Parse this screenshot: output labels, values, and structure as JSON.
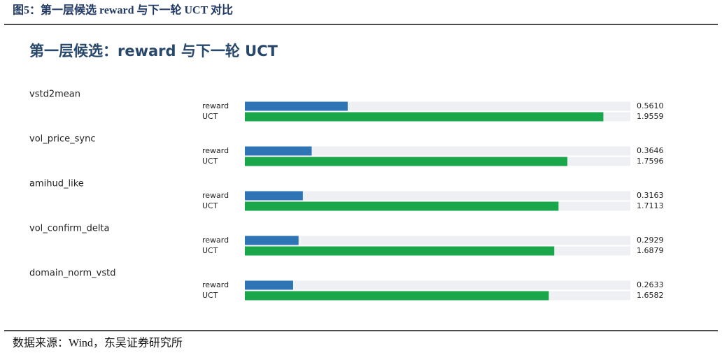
{
  "caption": "图5：第一层候选 reward 与下一轮 UCT 对比",
  "source": "数据来源：Wind，东吴证券研究所",
  "chart_data": {
    "type": "bar",
    "orientation": "horizontal",
    "title": "第一层候选：reward 与下一轮 UCT",
    "categories": [
      "vstd2mean",
      "vol_price_sync",
      "amihud_like",
      "vol_confirm_delta",
      "domain_norm_vstd"
    ],
    "series": [
      {
        "name": "reward",
        "color": "#2e75b6",
        "values": [
          0.561,
          0.3646,
          0.3163,
          0.2929,
          0.2633
        ],
        "value_labels": [
          "0.5610",
          "0.3646",
          "0.3163",
          "0.2929",
          "0.2633"
        ]
      },
      {
        "name": "UCT",
        "color": "#1aa64a",
        "values": [
          1.9559,
          1.7596,
          1.7113,
          1.6879,
          1.6582
        ],
        "value_labels": [
          "1.9559",
          "1.7596",
          "1.7113",
          "1.6879",
          "1.6582"
        ]
      }
    ]
  }
}
